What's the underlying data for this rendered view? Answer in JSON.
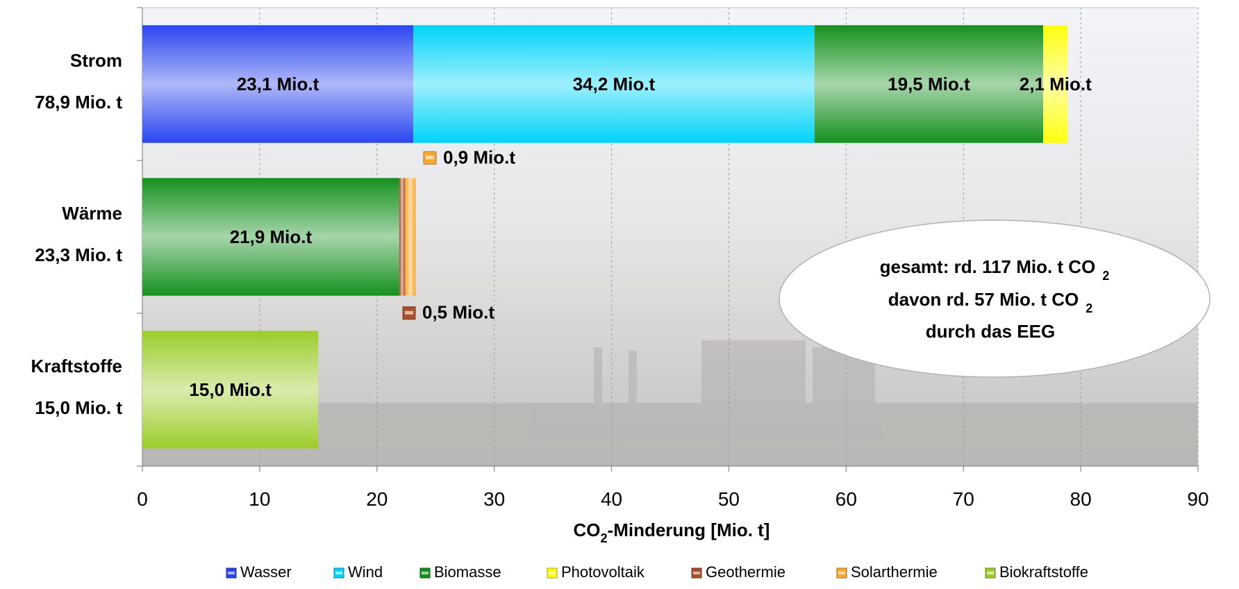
{
  "chart_data": {
    "type": "bar",
    "orientation": "horizontal",
    "stacked": true,
    "categories": [
      "Strom",
      "Wärme",
      "Kraftstoffe"
    ],
    "category_totals": [
      "78,9 Mio. t",
      "23,3 Mio. t",
      "15,0 Mio. t"
    ],
    "series": [
      {
        "name": "Wasser",
        "color": "#2a45f0",
        "values": [
          23.1,
          0,
          0
        ],
        "labels": [
          "23,1 Mio.t",
          "",
          ""
        ]
      },
      {
        "name": "Wind",
        "color": "#00d4f8",
        "values": [
          34.2,
          0,
          0
        ],
        "labels": [
          "34,2 Mio.t",
          "",
          ""
        ]
      },
      {
        "name": "Biomasse",
        "color": "#15901e",
        "values": [
          19.5,
          21.9,
          0
        ],
        "labels": [
          "19,5 Mio.t",
          "21,9 Mio.t",
          ""
        ]
      },
      {
        "name": "Photovoltaik",
        "color": "#ffff10",
        "values": [
          2.1,
          0,
          0
        ],
        "labels": [
          "2,1 Mio.t",
          "",
          ""
        ]
      },
      {
        "name": "Geothermie",
        "color": "#a8502c",
        "values": [
          0,
          0.5,
          0
        ],
        "labels": [
          "",
          "0,5 Mio.t",
          ""
        ]
      },
      {
        "name": "Solarthermie",
        "color": "#f7a830",
        "values": [
          0,
          0.9,
          0
        ],
        "labels": [
          "",
          "0,9 Mio.t",
          ""
        ]
      },
      {
        "name": "Biokraftstoffe",
        "color": "#9ccc2a",
        "values": [
          0,
          0,
          15.0
        ],
        "labels": [
          "",
          "",
          "15,0 Mio.t"
        ]
      }
    ],
    "xlim": [
      0,
      90
    ],
    "xticks": [
      "0",
      "10",
      "20",
      "30",
      "40",
      "50",
      "60",
      "70",
      "80",
      "90"
    ],
    "xlabel_main": "CO",
    "xlabel_sub": "2",
    "xlabel_rest": "-Minderung  [Mio. t]",
    "grid": true,
    "legend_position": "bottom",
    "annotation": {
      "line1": "gesamt: rd. 117 Mio. t CO",
      "line1_sub": "2",
      "line2": "davon rd. 57 Mio. t  CO",
      "line2_sub": "2",
      "line3": "durch das EEG"
    }
  }
}
